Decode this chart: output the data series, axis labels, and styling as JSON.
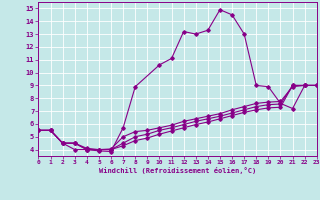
{
  "xlabel": "Windchill (Refroidissement éolien,°C)",
  "xlim": [
    0,
    23
  ],
  "ylim": [
    3.5,
    15.5
  ],
  "xticks": [
    0,
    1,
    2,
    3,
    4,
    5,
    6,
    7,
    8,
    9,
    10,
    11,
    12,
    13,
    14,
    15,
    16,
    17,
    18,
    19,
    20,
    21,
    22,
    23
  ],
  "yticks": [
    4,
    5,
    6,
    7,
    8,
    9,
    10,
    11,
    12,
    13,
    14,
    15
  ],
  "bg_color": "#c5e8e8",
  "line_color": "#880088",
  "grid_color": "#ffffff",
  "curves": [
    {
      "x": [
        0,
        1,
        2,
        3,
        4,
        5,
        6,
        7,
        8,
        10,
        11,
        12,
        13,
        14,
        15,
        16,
        17,
        18,
        19,
        20,
        21,
        22,
        23
      ],
      "y": [
        5.5,
        5.5,
        4.5,
        4.0,
        4.0,
        3.9,
        3.85,
        5.7,
        8.9,
        10.6,
        11.1,
        13.2,
        13.0,
        13.3,
        14.9,
        14.5,
        13.0,
        9.0,
        8.9,
        7.6,
        7.2,
        9.0,
        9.0
      ]
    },
    {
      "x": [
        0,
        1,
        2,
        3,
        4,
        5,
        6,
        7,
        8,
        9,
        10,
        11,
        12,
        13,
        14,
        15,
        16,
        17,
        18,
        19,
        20,
        21,
        22,
        23
      ],
      "y": [
        5.5,
        5.5,
        4.5,
        4.5,
        4.0,
        4.0,
        4.05,
        5.0,
        5.4,
        5.5,
        5.7,
        5.9,
        6.2,
        6.4,
        6.6,
        6.8,
        7.1,
        7.35,
        7.6,
        7.7,
        7.75,
        8.9,
        9.0,
        9.0
      ]
    },
    {
      "x": [
        0,
        1,
        2,
        3,
        4,
        5,
        6,
        7,
        8,
        9,
        10,
        11,
        12,
        13,
        14,
        15,
        16,
        17,
        18,
        19,
        20,
        21,
        22,
        23
      ],
      "y": [
        5.5,
        5.5,
        4.5,
        4.5,
        4.1,
        4.0,
        4.0,
        4.5,
        5.0,
        5.2,
        5.5,
        5.7,
        5.95,
        6.2,
        6.4,
        6.6,
        6.85,
        7.1,
        7.35,
        7.5,
        7.55,
        9.0,
        9.0,
        9.0
      ]
    },
    {
      "x": [
        0,
        1,
        2,
        3,
        4,
        5,
        6,
        7,
        8,
        9,
        10,
        11,
        12,
        13,
        14,
        15,
        16,
        17,
        18,
        19,
        20,
        21,
        22,
        23
      ],
      "y": [
        5.5,
        5.5,
        4.5,
        4.5,
        4.0,
        4.0,
        4.0,
        4.3,
        4.7,
        4.9,
        5.2,
        5.45,
        5.7,
        5.95,
        6.15,
        6.4,
        6.65,
        6.9,
        7.1,
        7.25,
        7.3,
        9.0,
        9.0,
        9.0
      ]
    }
  ]
}
